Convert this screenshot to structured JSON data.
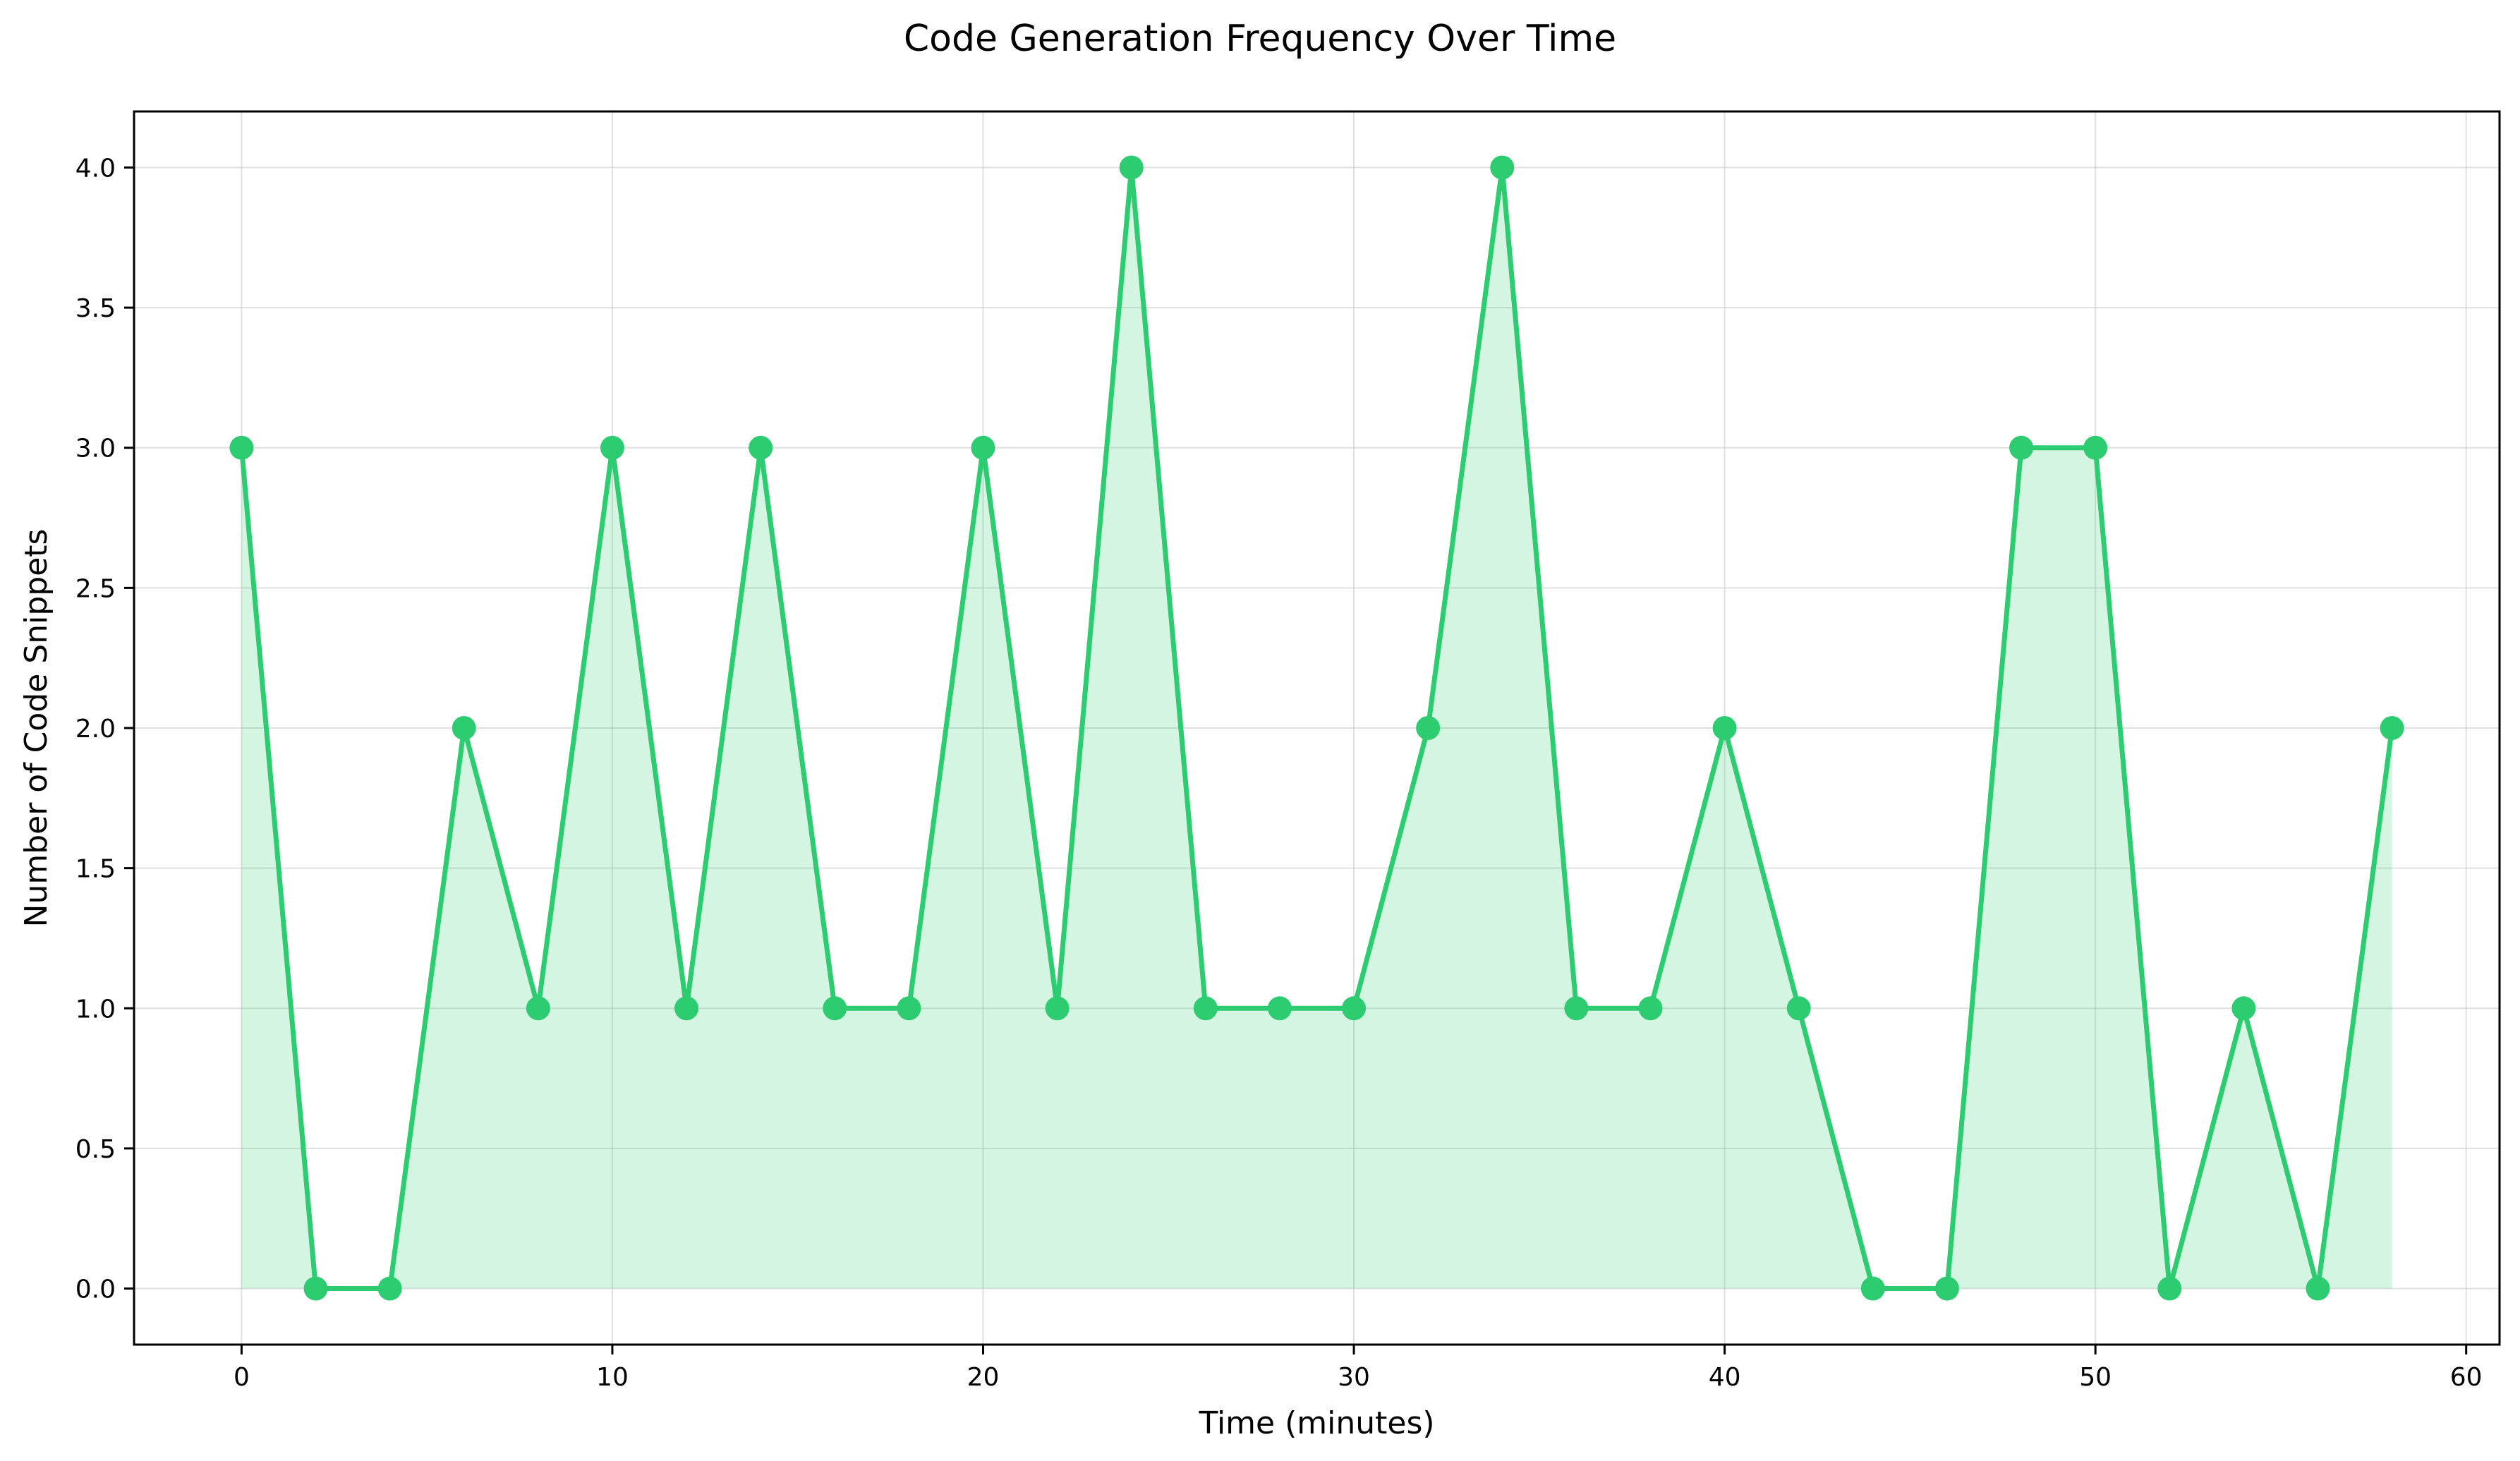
{
  "chart_data": {
    "type": "line",
    "title": "Code Generation Frequency Over Time",
    "xlabel": "Time (minutes)",
    "ylabel": "Number of Code Snippets",
    "xlim": [
      -2.9,
      60.9
    ],
    "ylim": [
      -0.2,
      4.2
    ],
    "xticks": [
      0,
      10,
      20,
      30,
      40,
      50,
      60
    ],
    "xtick_labels": [
      "0",
      "10",
      "20",
      "30",
      "40",
      "50",
      "60"
    ],
    "yticks": [
      0.0,
      0.5,
      1.0,
      1.5,
      2.0,
      2.5,
      3.0,
      3.5,
      4.0
    ],
    "ytick_labels": [
      "0.0",
      "0.5",
      "1.0",
      "1.5",
      "2.0",
      "2.5",
      "3.0",
      "3.5",
      "4.0"
    ],
    "grid": true,
    "fill_under_line": true,
    "markers": "circle",
    "line_color": "#2ecc71",
    "fill_color": "#2ecc71",
    "fill_opacity": 0.2,
    "grid_color": "#cccccc",
    "series": [
      {
        "x": [
          0,
          2,
          4,
          6,
          8,
          10,
          12,
          14,
          16,
          18,
          20,
          22,
          24,
          26,
          28,
          30,
          32,
          34,
          36,
          38,
          40,
          42,
          44,
          46,
          48,
          50,
          52,
          54,
          56,
          58
        ],
        "y": [
          3,
          0,
          0,
          2,
          1,
          3,
          1,
          3,
          1,
          1,
          3,
          1,
          4,
          1,
          1,
          1,
          2,
          4,
          1,
          1,
          2,
          1,
          0,
          0,
          3,
          3,
          0,
          1,
          0,
          2
        ]
      }
    ]
  }
}
